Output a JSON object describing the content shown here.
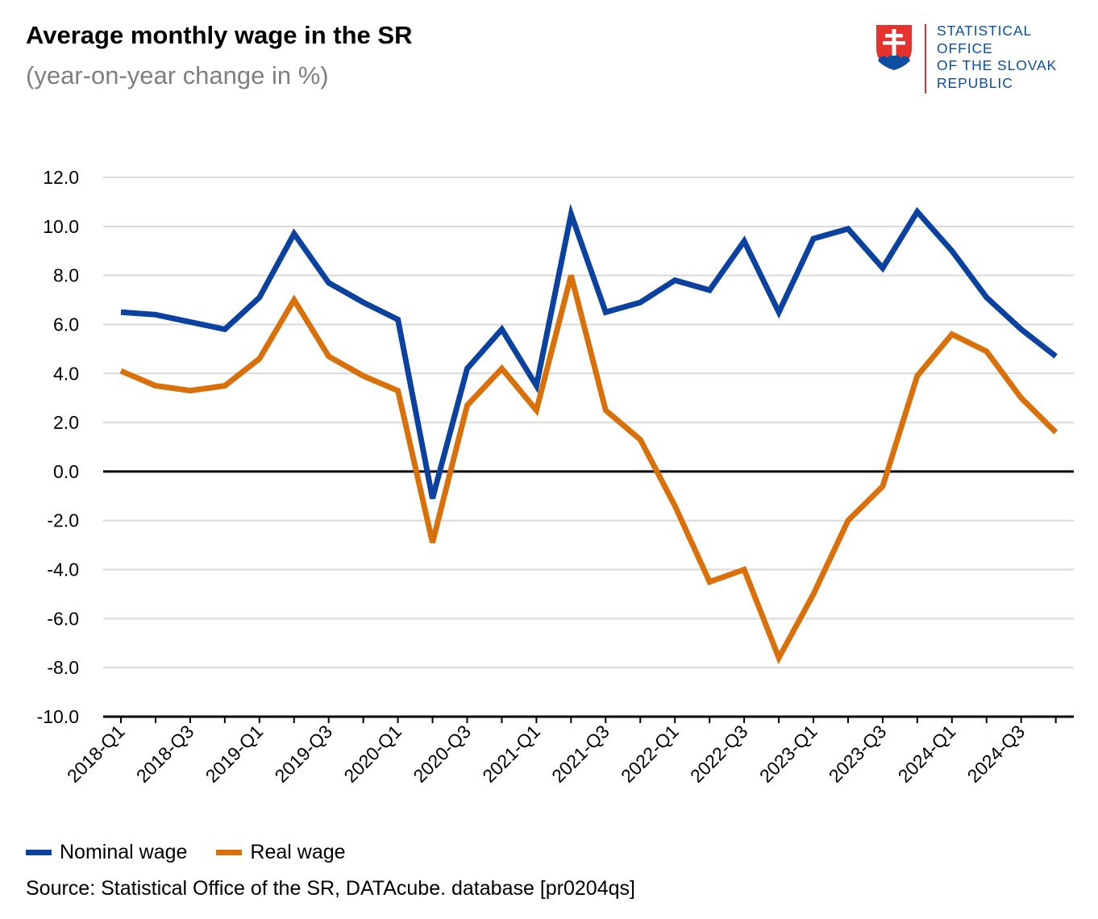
{
  "header": {
    "title": "Average monthly wage in the SR",
    "subtitle": "(year-on-year change in %)"
  },
  "logo": {
    "lines": [
      "STATISTICAL",
      "OFFICE",
      "OF THE SLOVAK",
      "REPUBLIC"
    ],
    "icon": "slovak-coat-of-arms-icon"
  },
  "colors": {
    "nominal": "#0b42a0",
    "real": "#d9700a",
    "grid": "#d9d9d9",
    "axis": "#000000"
  },
  "chart_data": {
    "type": "line",
    "title": "Average monthly wage in the SR",
    "subtitle": "(year-on-year change in %)",
    "xlabel": "",
    "ylabel": "",
    "ylim": [
      -10,
      12
    ],
    "yticks": [
      "12.0",
      "10.0",
      "8.0",
      "6.0",
      "4.0",
      "2.0",
      "0.0",
      "-2.0",
      "-4.0",
      "-6.0",
      "-8.0",
      "-10.0"
    ],
    "x": [
      "2018-Q1",
      "2018-Q2",
      "2018-Q3",
      "2018-Q4",
      "2019-Q1",
      "2019-Q2",
      "2019-Q3",
      "2019-Q4",
      "2020-Q1",
      "2020-Q2",
      "2020-Q3",
      "2020-Q4",
      "2021-Q1",
      "2021-Q2",
      "2021-Q3",
      "2021-Q4",
      "2022-Q1",
      "2022-Q2",
      "2022-Q3",
      "2022-Q4",
      "2023-Q1",
      "2023-Q2",
      "2023-Q3",
      "2023-Q4",
      "2024-Q1",
      "2024-Q2",
      "2024-Q3",
      "2024-Q4"
    ],
    "xtick_labels": [
      "2018-Q1",
      "2018-Q3",
      "2019-Q1",
      "2019-Q3",
      "2020-Q1",
      "2020-Q3",
      "2021-Q1",
      "2021-Q3",
      "2022-Q1",
      "2022-Q3",
      "2023-Q1",
      "2023-Q3",
      "2024-Q1",
      "2024-Q3"
    ],
    "series": [
      {
        "name": "Nominal wage",
        "values": [
          6.5,
          6.4,
          6.1,
          5.8,
          7.1,
          9.7,
          7.7,
          6.9,
          6.2,
          -1.1,
          4.2,
          5.8,
          3.5,
          10.5,
          6.5,
          6.9,
          7.8,
          7.4,
          9.4,
          6.5,
          9.5,
          9.9,
          8.3,
          10.6,
          9.0,
          7.1,
          5.8,
          4.7
        ]
      },
      {
        "name": "Real wage",
        "values": [
          4.1,
          3.5,
          3.3,
          3.5,
          4.6,
          7.0,
          4.7,
          3.9,
          3.3,
          -2.9,
          2.7,
          4.2,
          2.5,
          8.0,
          2.5,
          1.3,
          -1.4,
          -4.5,
          -4.0,
          -7.6,
          -5.0,
          -2.0,
          -0.6,
          3.9,
          5.6,
          4.9,
          3.0,
          1.6
        ]
      }
    ],
    "grid": true,
    "legend_position": "bottom-left"
  },
  "source": "Source: Statistical Office of the SR, DATAcube. database [pr0204qs]"
}
